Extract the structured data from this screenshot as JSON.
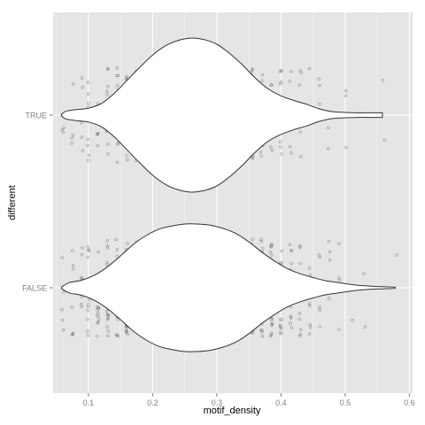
{
  "chart_data": {
    "type": "violin",
    "xlabel": "motif_density",
    "ylabel": "different",
    "xlim": [
      0.045,
      0.605
    ],
    "x_ticks": [
      0.1,
      0.2,
      0.3,
      0.4,
      0.5,
      0.6
    ],
    "x_tick_labels": [
      "0.1",
      "0.2",
      "0.3",
      "0.4",
      "0.5",
      "0.6"
    ],
    "categories": [
      "TRUE",
      "FALSE"
    ],
    "grid": true,
    "background_color": "#e5e5e5",
    "grid_color": "#ffffff",
    "violin_fill": "#ffffff",
    "violin_stroke": "#333333",
    "point_color": "#555555",
    "series": [
      {
        "category": "TRUE",
        "density_profile": [
          [
            0.058,
            0.01
          ],
          [
            0.065,
            0.05
          ],
          [
            0.08,
            0.07
          ],
          [
            0.1,
            0.09
          ],
          [
            0.12,
            0.15
          ],
          [
            0.14,
            0.28
          ],
          [
            0.16,
            0.45
          ],
          [
            0.18,
            0.62
          ],
          [
            0.2,
            0.78
          ],
          [
            0.22,
            0.9
          ],
          [
            0.24,
            0.97
          ],
          [
            0.26,
            1.0
          ],
          [
            0.28,
            0.98
          ],
          [
            0.3,
            0.92
          ],
          [
            0.32,
            0.8
          ],
          [
            0.34,
            0.65
          ],
          [
            0.36,
            0.48
          ],
          [
            0.38,
            0.34
          ],
          [
            0.4,
            0.25
          ],
          [
            0.42,
            0.19
          ],
          [
            0.44,
            0.14
          ],
          [
            0.46,
            0.08
          ],
          [
            0.48,
            0.045
          ],
          [
            0.5,
            0.035
          ],
          [
            0.52,
            0.03
          ],
          [
            0.54,
            0.03
          ],
          [
            0.558,
            0.03
          ]
        ],
        "point_columns": [
          {
            "x": 0.06,
            "count": 3
          },
          {
            "x": 0.075,
            "count": 4
          },
          {
            "x": 0.09,
            "count": 5
          },
          {
            "x": 0.1,
            "count": 8
          },
          {
            "x": 0.115,
            "count": 10
          },
          {
            "x": 0.13,
            "count": 14
          },
          {
            "x": 0.145,
            "count": 18
          },
          {
            "x": 0.16,
            "count": 24
          },
          {
            "x": 0.175,
            "count": 30
          },
          {
            "x": 0.19,
            "count": 36
          },
          {
            "x": 0.205,
            "count": 40
          },
          {
            "x": 0.22,
            "count": 44
          },
          {
            "x": 0.235,
            "count": 46
          },
          {
            "x": 0.25,
            "count": 48
          },
          {
            "x": 0.265,
            "count": 48
          },
          {
            "x": 0.28,
            "count": 46
          },
          {
            "x": 0.295,
            "count": 44
          },
          {
            "x": 0.31,
            "count": 40
          },
          {
            "x": 0.325,
            "count": 34
          },
          {
            "x": 0.34,
            "count": 28
          },
          {
            "x": 0.355,
            "count": 20
          },
          {
            "x": 0.37,
            "count": 14
          },
          {
            "x": 0.385,
            "count": 10
          },
          {
            "x": 0.4,
            "count": 8
          },
          {
            "x": 0.415,
            "count": 6
          },
          {
            "x": 0.43,
            "count": 5
          },
          {
            "x": 0.445,
            "count": 4
          },
          {
            "x": 0.46,
            "count": 3
          },
          {
            "x": 0.475,
            "count": 2
          },
          {
            "x": 0.5,
            "count": 3
          },
          {
            "x": 0.56,
            "count": 2
          }
        ]
      },
      {
        "category": "FALSE",
        "density_profile": [
          [
            0.058,
            0.01
          ],
          [
            0.07,
            0.08
          ],
          [
            0.09,
            0.12
          ],
          [
            0.11,
            0.2
          ],
          [
            0.13,
            0.33
          ],
          [
            0.15,
            0.5
          ],
          [
            0.17,
            0.68
          ],
          [
            0.19,
            0.82
          ],
          [
            0.21,
            0.92
          ],
          [
            0.23,
            0.97
          ],
          [
            0.25,
            1.0
          ],
          [
            0.27,
            1.0
          ],
          [
            0.29,
            0.98
          ],
          [
            0.31,
            0.93
          ],
          [
            0.33,
            0.85
          ],
          [
            0.35,
            0.72
          ],
          [
            0.37,
            0.56
          ],
          [
            0.39,
            0.42
          ],
          [
            0.41,
            0.3
          ],
          [
            0.43,
            0.22
          ],
          [
            0.45,
            0.16
          ],
          [
            0.47,
            0.11
          ],
          [
            0.49,
            0.08
          ],
          [
            0.51,
            0.05
          ],
          [
            0.53,
            0.03
          ],
          [
            0.55,
            0.02
          ],
          [
            0.578,
            0.01
          ]
        ],
        "point_columns": [
          {
            "x": 0.06,
            "count": 5
          },
          {
            "x": 0.075,
            "count": 7
          },
          {
            "x": 0.09,
            "count": 9
          },
          {
            "x": 0.1,
            "count": 12
          },
          {
            "x": 0.115,
            "count": 16
          },
          {
            "x": 0.13,
            "count": 22
          },
          {
            "x": 0.145,
            "count": 30
          },
          {
            "x": 0.16,
            "count": 40
          },
          {
            "x": 0.175,
            "count": 52
          },
          {
            "x": 0.19,
            "count": 62
          },
          {
            "x": 0.205,
            "count": 70
          },
          {
            "x": 0.22,
            "count": 74
          },
          {
            "x": 0.235,
            "count": 78
          },
          {
            "x": 0.25,
            "count": 80
          },
          {
            "x": 0.265,
            "count": 80
          },
          {
            "x": 0.28,
            "count": 80
          },
          {
            "x": 0.295,
            "count": 78
          },
          {
            "x": 0.31,
            "count": 74
          },
          {
            "x": 0.325,
            "count": 68
          },
          {
            "x": 0.34,
            "count": 58
          },
          {
            "x": 0.355,
            "count": 46
          },
          {
            "x": 0.37,
            "count": 36
          },
          {
            "x": 0.385,
            "count": 28
          },
          {
            "x": 0.4,
            "count": 22
          },
          {
            "x": 0.415,
            "count": 16
          },
          {
            "x": 0.43,
            "count": 12
          },
          {
            "x": 0.445,
            "count": 9
          },
          {
            "x": 0.46,
            "count": 7
          },
          {
            "x": 0.475,
            "count": 5
          },
          {
            "x": 0.49,
            "count": 4
          },
          {
            "x": 0.51,
            "count": 3
          },
          {
            "x": 0.53,
            "count": 2
          },
          {
            "x": 0.58,
            "count": 1
          }
        ]
      }
    ]
  }
}
